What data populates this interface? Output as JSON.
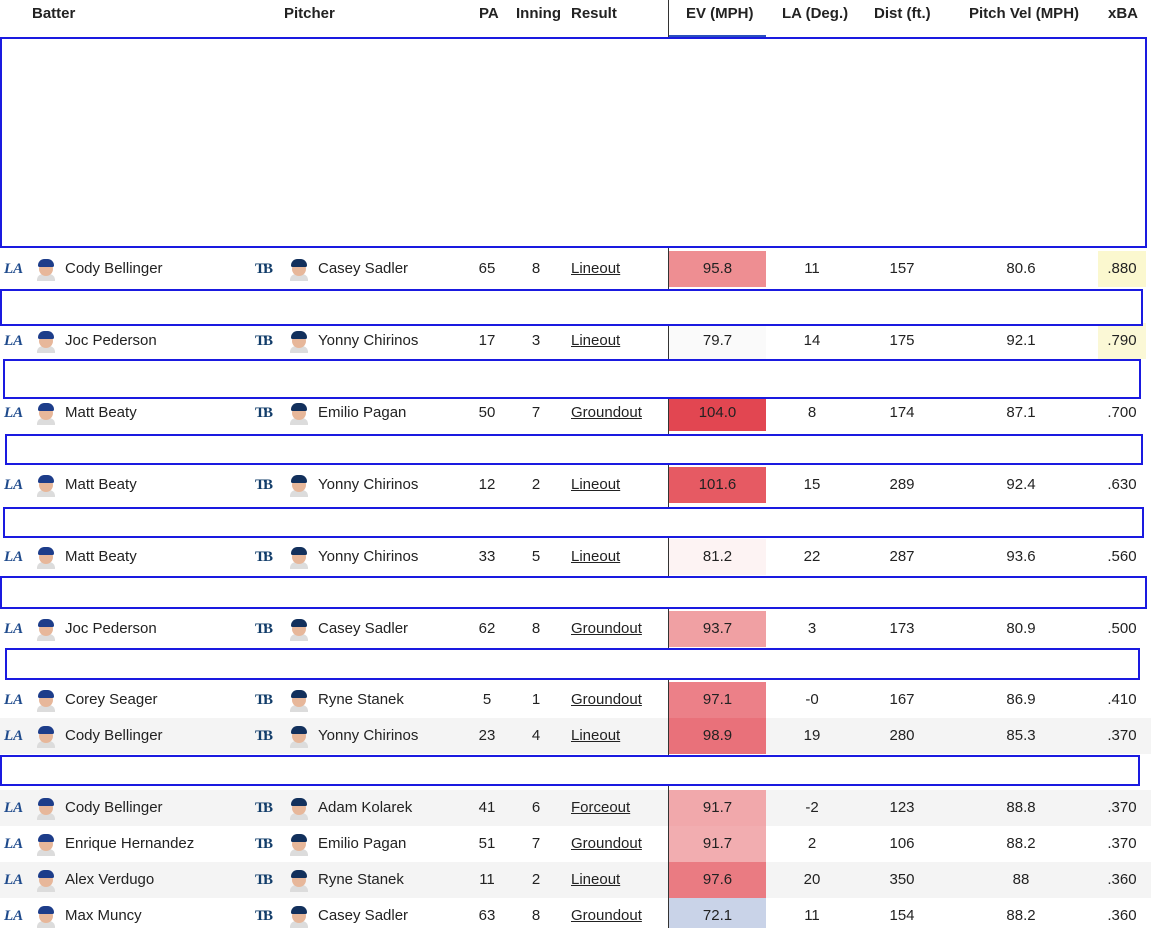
{
  "header": {
    "batter": "Batter",
    "pitcher": "Pitcher",
    "pa": "PA",
    "inning": "Inning",
    "result": "Result",
    "ev": "EV (MPH)",
    "la": "LA (Deg.)",
    "dist": "Dist (ft.)",
    "pitch_vel": "Pitch Vel (MPH)",
    "xba": "xBA"
  },
  "rows": [
    {
      "batter": "Cody Bellinger",
      "pitcher": "Casey Sadler",
      "pa": "65",
      "inning": "8",
      "result": "Lineout",
      "ev": "95.8",
      "la": "11",
      "dist": "157",
      "pitch_vel": "80.6",
      "xba": ".880",
      "ev_color": "#ee8e92",
      "xba_color": "#fbf8cf",
      "striped": false
    },
    {
      "batter": "Joc Pederson",
      "pitcher": "Yonny Chirinos",
      "pa": "17",
      "inning": "3",
      "result": "Lineout",
      "ev": "79.7",
      "la": "14",
      "dist": "175",
      "pitch_vel": "92.1",
      "xba": ".790",
      "ev_color": "#fafafa",
      "xba_color": "#fbf8d6",
      "striped": false
    },
    {
      "batter": "Matt Beaty",
      "pitcher": "Emilio Pagan",
      "pa": "50",
      "inning": "7",
      "result": "Groundout",
      "ev": "104.0",
      "la": "8",
      "dist": "174",
      "pitch_vel": "87.1",
      "xba": ".700",
      "ev_color": "#e24651",
      "xba_color": "#ffffff",
      "striped": false
    },
    {
      "batter": "Matt Beaty",
      "pitcher": "Yonny Chirinos",
      "pa": "12",
      "inning": "2",
      "result": "Lineout",
      "ev": "101.6",
      "la": "15",
      "dist": "289",
      "pitch_vel": "92.4",
      "xba": ".630",
      "ev_color": "#e65a63",
      "xba_color": "#ffffff",
      "striped": false
    },
    {
      "batter": "Matt Beaty",
      "pitcher": "Yonny Chirinos",
      "pa": "33",
      "inning": "5",
      "result": "Lineout",
      "ev": "81.2",
      "la": "22",
      "dist": "287",
      "pitch_vel": "93.6",
      "xba": ".560",
      "ev_color": "#fdf3f3",
      "xba_color": "#ffffff",
      "striped": false
    },
    {
      "batter": "Joc Pederson",
      "pitcher": "Casey Sadler",
      "pa": "62",
      "inning": "8",
      "result": "Groundout",
      "ev": "93.7",
      "la": "3",
      "dist": "173",
      "pitch_vel": "80.9",
      "xba": ".500",
      "ev_color": "#f0a0a3",
      "xba_color": "#ffffff",
      "striped": false
    },
    {
      "batter": "Corey Seager",
      "pitcher": "Ryne Stanek",
      "pa": "5",
      "inning": "1",
      "result": "Groundout",
      "ev": "97.1",
      "la": "-0",
      "dist": "167",
      "pitch_vel": "86.9",
      "xba": ".410",
      "ev_color": "#ec8088",
      "xba_color": "#ffffff",
      "striped": false
    },
    {
      "batter": "Cody Bellinger",
      "pitcher": "Yonny Chirinos",
      "pa": "23",
      "inning": "4",
      "result": "Lineout",
      "ev": "98.9",
      "la": "19",
      "dist": "280",
      "pitch_vel": "85.3",
      "xba": ".370",
      "ev_color": "#e9717a",
      "xba_color": "#f4f4f4",
      "striped": true
    },
    {
      "batter": "Cody Bellinger",
      "pitcher": "Adam Kolarek",
      "pa": "41",
      "inning": "6",
      "result": "Forceout",
      "ev": "91.7",
      "la": "-2",
      "dist": "123",
      "pitch_vel": "88.8",
      "xba": ".370",
      "ev_color": "#f1a8ab",
      "xba_color": "#f4f4f4",
      "striped": true
    },
    {
      "batter": "Enrique Hernandez",
      "pitcher": "Emilio Pagan",
      "pa": "51",
      "inning": "7",
      "result": "Groundout",
      "ev": "91.7",
      "la": "2",
      "dist": "106",
      "pitch_vel": "88.2",
      "xba": ".370",
      "ev_color": "#f2adb0",
      "xba_color": "#ffffff",
      "striped": false
    },
    {
      "batter": "Alex Verdugo",
      "pitcher": "Ryne Stanek",
      "pa": "11",
      "inning": "2",
      "result": "Lineout",
      "ev": "97.6",
      "la": "20",
      "dist": "350",
      "pitch_vel": "88",
      "xba": ".360",
      "ev_color": "#ea7b82",
      "xba_color": "#f4f4f4",
      "striped": true
    },
    {
      "batter": "Max Muncy",
      "pitcher": "Casey Sadler",
      "pa": "63",
      "inning": "8",
      "result": "Groundout",
      "ev": "72.1",
      "la": "11",
      "dist": "154",
      "pitch_vel": "88.2",
      "xba": ".360",
      "ev_color": "#c9d3e8",
      "xba_color": "#ffffff",
      "striped": false
    }
  ],
  "teams": {
    "batter_logo": "LA",
    "pitcher_logo": "TB"
  }
}
